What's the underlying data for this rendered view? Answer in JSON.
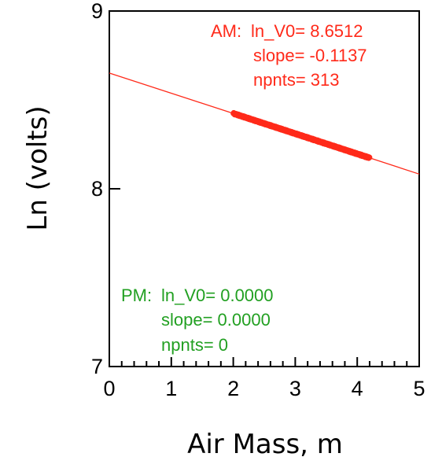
{
  "chart_data": {
    "type": "scatter",
    "xlabel": "Air Mass, m",
    "ylabel": "Ln (volts)",
    "xlim": [
      0,
      5
    ],
    "ylim": [
      7,
      9
    ],
    "x_ticks": [
      "0",
      "1",
      "2",
      "3",
      "4",
      "5"
    ],
    "y_ticks": [
      "7",
      "8",
      "9"
    ],
    "grid": false,
    "series": [
      {
        "color": "#ff2a1a",
        "points_x_range": [
          2.0,
          4.2
        ],
        "npoints": 313,
        "fit": {
          "intercept": 8.6512,
          "slope": -0.1137,
          "x_range": [
            0,
            5
          ]
        }
      }
    ],
    "annotations": {
      "am": {
        "color": "#ff2a1a",
        "line1_label": "AM:",
        "line1_rest": "ln_V0=  8.6512",
        "line2": "slope= -0.1137",
        "line3": "npnts= 313"
      },
      "pm": {
        "color": "#22a022",
        "line1_label": "PM:",
        "line1_rest": "ln_V0=  0.0000",
        "line2": "slope=  0.0000",
        "line3": "npnts=   0"
      }
    }
  }
}
